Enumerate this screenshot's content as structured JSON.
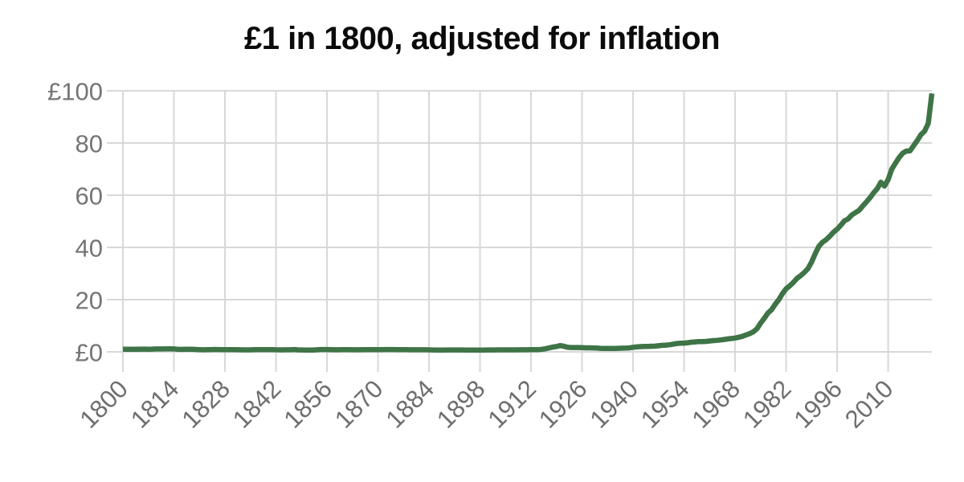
{
  "chart_data": {
    "type": "line",
    "title": "£1 in 1800, adjusted for inflation",
    "xlabel": "",
    "ylabel": "",
    "xlim": [
      1800,
      2022
    ],
    "ylim": [
      0,
      100
    ],
    "grid": true,
    "legend": "none",
    "colors": {
      "line": "#3e7446",
      "grid": "#d8d8d8",
      "y_tick_label": "#757575",
      "x_tick_label": "#6e6e6e",
      "title": "#0b0b0b",
      "background": "#ffffff"
    },
    "y_ticks": [
      {
        "value": 0,
        "label": "£0"
      },
      {
        "value": 20,
        "label": "20"
      },
      {
        "value": 40,
        "label": "40"
      },
      {
        "value": 60,
        "label": "60"
      },
      {
        "value": 80,
        "label": "80"
      },
      {
        "value": 100,
        "label": "£100"
      }
    ],
    "x_ticks": [
      {
        "value": 1800,
        "label": "1800"
      },
      {
        "value": 1814,
        "label": "1814"
      },
      {
        "value": 1828,
        "label": "1828"
      },
      {
        "value": 1842,
        "label": "1842"
      },
      {
        "value": 1856,
        "label": "1856"
      },
      {
        "value": 1870,
        "label": "1870"
      },
      {
        "value": 1884,
        "label": "1884"
      },
      {
        "value": 1898,
        "label": "1898"
      },
      {
        "value": 1912,
        "label": "1912"
      },
      {
        "value": 1926,
        "label": "1926"
      },
      {
        "value": 1940,
        "label": "1940"
      },
      {
        "value": 1954,
        "label": "1954"
      },
      {
        "value": 1968,
        "label": "1968"
      },
      {
        "value": 1982,
        "label": "1982"
      },
      {
        "value": 1996,
        "label": "1996"
      },
      {
        "value": 2010,
        "label": "2010"
      }
    ],
    "series": [
      {
        "start_year": 1800,
        "end_year": 2022,
        "values": [
          1.0,
          1.03,
          0.97,
          1.0,
          1.02,
          1.05,
          1.04,
          1.03,
          1.06,
          1.1,
          1.12,
          1.1,
          1.15,
          1.18,
          1.1,
          1.02,
          0.95,
          0.98,
          1.0,
          0.97,
          0.92,
          0.86,
          0.8,
          0.83,
          0.87,
          0.92,
          0.88,
          0.85,
          0.84,
          0.83,
          0.82,
          0.84,
          0.81,
          0.78,
          0.76,
          0.77,
          0.82,
          0.82,
          0.84,
          0.87,
          0.87,
          0.85,
          0.8,
          0.76,
          0.77,
          0.79,
          0.81,
          0.88,
          0.78,
          0.73,
          0.71,
          0.7,
          0.71,
          0.78,
          0.89,
          0.9,
          0.9,
          0.85,
          0.8,
          0.81,
          0.83,
          0.84,
          0.82,
          0.8,
          0.8,
          0.81,
          0.84,
          0.86,
          0.85,
          0.82,
          0.82,
          0.84,
          0.88,
          0.9,
          0.88,
          0.86,
          0.86,
          0.85,
          0.82,
          0.79,
          0.81,
          0.8,
          0.8,
          0.79,
          0.76,
          0.74,
          0.72,
          0.71,
          0.72,
          0.73,
          0.73,
          0.74,
          0.74,
          0.73,
          0.71,
          0.7,
          0.7,
          0.71,
          0.72,
          0.72,
          0.75,
          0.75,
          0.75,
          0.76,
          0.76,
          0.76,
          0.76,
          0.77,
          0.78,
          0.79,
          0.8,
          0.8,
          0.83,
          0.83,
          0.84,
          1.0,
          1.2,
          1.5,
          1.85,
          2.05,
          2.4,
          2.15,
          1.75,
          1.65,
          1.65,
          1.65,
          1.6,
          1.55,
          1.55,
          1.5,
          1.45,
          1.35,
          1.3,
          1.3,
          1.3,
          1.3,
          1.35,
          1.4,
          1.45,
          1.5,
          1.75,
          1.9,
          2.0,
          2.05,
          2.1,
          2.15,
          2.2,
          2.35,
          2.5,
          2.6,
          2.7,
          2.95,
          3.2,
          3.3,
          3.35,
          3.5,
          3.7,
          3.8,
          3.95,
          3.95,
          4.0,
          4.15,
          4.3,
          4.4,
          4.55,
          4.75,
          4.95,
          5.1,
          5.3,
          5.6,
          5.95,
          6.5,
          7.0,
          7.65,
          8.85,
          11.0,
          12.8,
          14.85,
          16.1,
          18.25,
          20.0,
          22.3,
          24.2,
          25.3,
          26.6,
          28.2,
          29.2,
          30.4,
          31.9,
          34.4,
          37.6,
          40.5,
          42.0,
          43.0,
          44.3,
          45.8,
          47.0,
          48.5,
          50.2,
          50.9,
          52.4,
          53.3,
          54.2,
          55.8,
          57.4,
          59.0,
          60.9,
          62.5,
          65.0,
          63.5,
          66.0,
          70.0,
          72.2,
          74.4,
          76.1,
          76.9,
          77.0,
          79.0,
          81.0,
          83.2,
          84.5,
          87.5,
          99.0
        ]
      }
    ]
  }
}
